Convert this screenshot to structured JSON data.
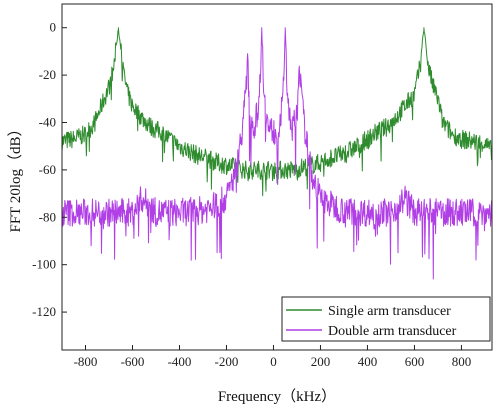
{
  "chart_data": {
    "type": "line",
    "xlabel": "Frequency（kHz）",
    "ylabel": "FFT 20log（dB）",
    "xlim": [
      -900,
      930
    ],
    "ylim": [
      -136,
      10
    ],
    "x_ticks": [
      -800,
      -600,
      -400,
      -200,
      0,
      200,
      400,
      600,
      800
    ],
    "y_ticks": [
      0,
      -20,
      -40,
      -60,
      -80,
      -100,
      -120
    ],
    "grid": false,
    "legend": {
      "placement": "bottom-right"
    },
    "series": [
      {
        "name": "Single arm transducer",
        "color": "#2e8b2e",
        "x": [
          -900,
          -850,
          -800,
          -760,
          -720,
          -700,
          -680,
          -660,
          -640,
          -620,
          -600,
          -560,
          -520,
          -480,
          -440,
          -400,
          -360,
          -320,
          -280,
          -240,
          -200,
          -160,
          -120,
          -80,
          -40,
          0,
          40,
          80,
          120,
          160,
          200,
          240,
          280,
          320,
          360,
          400,
          440,
          480,
          520,
          560,
          600,
          620,
          640,
          660,
          680,
          700,
          720,
          760,
          800,
          850,
          900,
          930
        ],
        "y": [
          -48,
          -47,
          -45,
          -40,
          -30,
          -25,
          -17,
          0,
          -18,
          -28,
          -33,
          -38,
          -42,
          -44,
          -47,
          -50,
          -52,
          -54,
          -55,
          -57,
          -58,
          -59,
          -60,
          -60,
          -60,
          -60,
          -60,
          -60,
          -59,
          -58,
          -57,
          -55,
          -54,
          -52,
          -50,
          -47,
          -44,
          -42,
          -38,
          -33,
          -28,
          -18,
          0,
          -17,
          -25,
          -30,
          -40,
          -45,
          -47,
          -48,
          -49,
          -52
        ]
      },
      {
        "name": "Double arm transducer",
        "color": "#b13fe6",
        "x": [
          -900,
          -800,
          -700,
          -600,
          -560,
          -500,
          -400,
          -300,
          -250,
          -200,
          -160,
          -140,
          -130,
          -120,
          -110,
          -100,
          -80,
          -60,
          -50,
          -40,
          -20,
          0,
          20,
          40,
          50,
          60,
          80,
          100,
          110,
          120,
          130,
          140,
          160,
          200,
          250,
          300,
          400,
          500,
          560,
          600,
          700,
          800,
          900,
          930
        ],
        "y": [
          -78,
          -78,
          -78,
          -78,
          -72,
          -78,
          -78,
          -77,
          -75,
          -72,
          -60,
          -48,
          -40,
          -30,
          -15,
          -38,
          -42,
          -30,
          0,
          -32,
          -43,
          -44,
          -43,
          -32,
          0,
          -30,
          -42,
          -38,
          -15,
          -30,
          -40,
          -48,
          -60,
          -72,
          -75,
          -77,
          -78,
          -78,
          -72,
          -78,
          -78,
          -78,
          -78,
          -78
        ]
      }
    ]
  }
}
